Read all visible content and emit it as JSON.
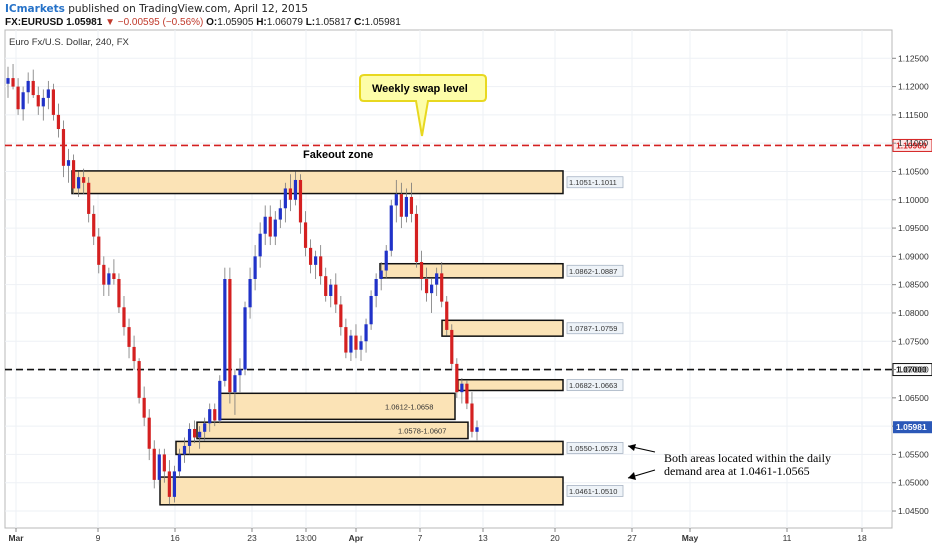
{
  "header": {
    "publisher": "ICmarkets",
    "published_text": "published on TradingView.com, April 12, 2015",
    "symbol": "FX:EURUSD",
    "last": "1.05981",
    "change": "−0.00595 (−0.56%)",
    "o_label": "O:",
    "o": "1.05905",
    "h_label": "H:",
    "h": "1.06079",
    "l_label": "L:",
    "l": "1.05817",
    "c_label": "C:",
    "c": "1.05981"
  },
  "chart_data": {
    "type": "candlestick",
    "title": "Euro Fx/U.S. Dollar, 240, FX",
    "ylim": [
      1.042,
      1.13
    ],
    "y_ticks": [
      "1.12500",
      "1.12000",
      "1.11500",
      "1.11000",
      "1.10500",
      "1.10000",
      "1.09500",
      "1.09000",
      "1.08500",
      "1.08000",
      "1.07500",
      "1.07000",
      "1.06500",
      "1.06000",
      "1.05500",
      "1.05000",
      "1.04500"
    ],
    "x_ticks": [
      "Mar",
      "9",
      "16",
      "23",
      "13:00",
      "Apr",
      "7",
      "13",
      "20",
      "27",
      "May",
      "11",
      "18"
    ],
    "last_price_label": "1.05981",
    "horizontal_levels": [
      {
        "price": 1.1096,
        "label": "1.10960",
        "color": "#d42020",
        "style": "dashed"
      },
      {
        "price": 1.07,
        "label": "1.07000",
        "color": "#111111",
        "style": "dashed"
      }
    ],
    "zones": [
      {
        "low": 1.1011,
        "high": 1.1051,
        "label": "1.1051-1.1011",
        "from_tick": "9",
        "label_pos": "right"
      },
      {
        "low": 1.0862,
        "high": 1.0887,
        "label": "1.0862-1.0887",
        "from_tick": "Apr",
        "label_pos": "right"
      },
      {
        "low": 1.0759,
        "high": 1.0787,
        "label": "1.0787-1.0759",
        "from_tick": "7",
        "label_pos": "right"
      },
      {
        "low": 1.0663,
        "high": 1.0682,
        "label": "1.0682-1.0663",
        "from_tick": "7",
        "label_pos": "right"
      },
      {
        "low": 1.0612,
        "high": 1.0658,
        "label": "1.0612-1.0658",
        "from_tick": "16",
        "label_pos": "inside"
      },
      {
        "low": 1.0578,
        "high": 1.0607,
        "label": "1.0578-1.0607",
        "from_tick": "16",
        "label_pos": "inside"
      },
      {
        "low": 1.055,
        "high": 1.0573,
        "label": "1.0550-1.0573",
        "from_tick": "16",
        "label_pos": "right"
      },
      {
        "low": 1.0461,
        "high": 1.051,
        "label": "1.0461-1.0510",
        "from_tick": "16",
        "label_pos": "right"
      }
    ],
    "annotations": {
      "fakeout": "Fakeout zone",
      "weekly_swap": "Weekly swap level",
      "both_areas_line1": "Both areas located within the daily",
      "both_areas_line2": "demand area at 1.0461-1.0565"
    },
    "candles": [
      [
        1.1205,
        1.1235,
        1.118,
        1.1215
      ],
      [
        1.1215,
        1.124,
        1.1195,
        1.12
      ],
      [
        1.12,
        1.1215,
        1.115,
        1.116
      ],
      [
        1.116,
        1.12,
        1.114,
        1.119
      ],
      [
        1.119,
        1.1225,
        1.117,
        1.121
      ],
      [
        1.121,
        1.123,
        1.118,
        1.1185
      ],
      [
        1.1185,
        1.12,
        1.115,
        1.1165
      ],
      [
        1.1165,
        1.1195,
        1.114,
        1.118
      ],
      [
        1.118,
        1.121,
        1.116,
        1.1195
      ],
      [
        1.1195,
        1.1205,
        1.114,
        1.115
      ],
      [
        1.115,
        1.117,
        1.111,
        1.1125
      ],
      [
        1.1125,
        1.114,
        1.104,
        1.106
      ],
      [
        1.106,
        1.109,
        1.103,
        1.107
      ],
      [
        1.107,
        1.108,
        1.101,
        1.102
      ],
      [
        1.102,
        1.105,
        1.1005,
        1.104
      ],
      [
        1.104,
        1.1055,
        1.101,
        1.103
      ],
      [
        1.103,
        1.104,
        1.096,
        1.0975
      ],
      [
        1.0975,
        1.099,
        1.092,
        1.0935
      ],
      [
        1.0935,
        1.095,
        1.087,
        1.0885
      ],
      [
        1.0885,
        1.09,
        1.083,
        1.085
      ],
      [
        1.085,
        1.088,
        1.083,
        1.087
      ],
      [
        1.087,
        1.0895,
        1.085,
        1.086
      ],
      [
        1.086,
        1.087,
        1.08,
        1.081
      ],
      [
        1.081,
        1.083,
        1.076,
        1.0775
      ],
      [
        1.0775,
        1.079,
        1.072,
        1.074
      ],
      [
        1.074,
        1.076,
        1.07,
        1.0715
      ],
      [
        1.0715,
        1.072,
        1.064,
        1.065
      ],
      [
        1.065,
        1.067,
        1.06,
        1.0615
      ],
      [
        1.0615,
        1.063,
        1.054,
        1.056
      ],
      [
        1.056,
        1.0575,
        1.049,
        1.0505
      ],
      [
        1.0505,
        1.056,
        1.0495,
        1.055
      ],
      [
        1.055,
        1.056,
        1.05,
        1.052
      ],
      [
        1.052,
        1.054,
        1.0462,
        1.0475
      ],
      [
        1.0475,
        1.053,
        1.0465,
        1.052
      ],
      [
        1.052,
        1.056,
        1.051,
        1.055
      ],
      [
        1.055,
        1.058,
        1.0535,
        1.0565
      ],
      [
        1.0565,
        1.0605,
        1.055,
        1.0595
      ],
      [
        1.0595,
        1.061,
        1.057,
        1.058
      ],
      [
        1.058,
        1.06,
        1.056,
        1.059
      ],
      [
        1.059,
        1.0615,
        1.0575,
        1.0605
      ],
      [
        1.0605,
        1.064,
        1.059,
        1.063
      ],
      [
        1.063,
        1.064,
        1.06,
        1.061
      ],
      [
        1.061,
        1.069,
        1.0605,
        1.068
      ],
      [
        1.068,
        1.088,
        1.067,
        1.086
      ],
      [
        1.086,
        1.088,
        1.064,
        1.066
      ],
      [
        1.066,
        1.07,
        1.062,
        1.069
      ],
      [
        1.069,
        1.072,
        1.066,
        1.07
      ],
      [
        1.07,
        1.082,
        1.069,
        1.081
      ],
      [
        1.081,
        1.088,
        1.079,
        1.086
      ],
      [
        1.086,
        1.092,
        1.084,
        1.09
      ],
      [
        1.09,
        1.096,
        1.088,
        1.094
      ],
      [
        1.094,
        1.099,
        1.092,
        1.097
      ],
      [
        1.097,
        1.099,
        1.092,
        1.0935
      ],
      [
        1.0935,
        1.098,
        1.092,
        1.0965
      ],
      [
        1.0965,
        1.1,
        1.095,
        1.0985
      ],
      [
        1.0985,
        1.103,
        1.096,
        1.102
      ],
      [
        1.102,
        1.1045,
        1.098,
        1.1
      ],
      [
        1.1,
        1.105,
        1.099,
        1.1035
      ],
      [
        1.1035,
        1.1045,
        1.094,
        1.096
      ],
      [
        1.096,
        1.098,
        1.09,
        1.0915
      ],
      [
        1.0915,
        1.093,
        1.087,
        1.0885
      ],
      [
        1.0885,
        1.091,
        1.086,
        1.09
      ],
      [
        1.09,
        1.092,
        1.085,
        1.0865
      ],
      [
        1.0865,
        1.088,
        1.082,
        1.083
      ],
      [
        1.083,
        1.086,
        1.081,
        1.085
      ],
      [
        1.085,
        1.087,
        1.08,
        1.0815
      ],
      [
        1.0815,
        1.083,
        1.076,
        1.0775
      ],
      [
        1.0775,
        1.079,
        1.072,
        1.073
      ],
      [
        1.073,
        1.077,
        1.0715,
        1.076
      ],
      [
        1.076,
        1.078,
        1.072,
        1.0735
      ],
      [
        1.0735,
        1.076,
        1.0715,
        1.075
      ],
      [
        1.075,
        1.079,
        1.073,
        1.078
      ],
      [
        1.078,
        1.084,
        1.077,
        1.083
      ],
      [
        1.083,
        1.087,
        1.081,
        1.086
      ],
      [
        1.086,
        1.089,
        1.084,
        1.0875
      ],
      [
        1.0875,
        1.092,
        1.086,
        1.091
      ],
      [
        1.091,
        1.1,
        1.09,
        1.099
      ],
      [
        1.099,
        1.1035,
        1.096,
        1.101
      ],
      [
        1.101,
        1.103,
        1.095,
        1.097
      ],
      [
        1.097,
        1.102,
        1.096,
        1.1005
      ],
      [
        1.1005,
        1.103,
        1.096,
        1.0975
      ],
      [
        1.0975,
        1.099,
        1.088,
        1.089
      ],
      [
        1.089,
        1.091,
        1.084,
        1.086
      ],
      [
        1.086,
        1.088,
        1.082,
        1.0835
      ],
      [
        1.0835,
        1.086,
        1.08,
        1.085
      ],
      [
        1.085,
        1.088,
        1.083,
        1.087
      ],
      [
        1.087,
        1.089,
        1.081,
        1.082
      ],
      [
        1.082,
        1.083,
        1.076,
        1.077
      ],
      [
        1.077,
        1.078,
        1.07,
        1.071
      ],
      [
        1.071,
        1.072,
        1.065,
        1.066
      ],
      [
        1.066,
        1.0685,
        1.064,
        1.0675
      ],
      [
        1.0675,
        1.068,
        1.063,
        1.064
      ],
      [
        1.064,
        1.066,
        1.058,
        1.059
      ],
      [
        1.059,
        1.061,
        1.0575,
        1.0598
      ]
    ]
  }
}
